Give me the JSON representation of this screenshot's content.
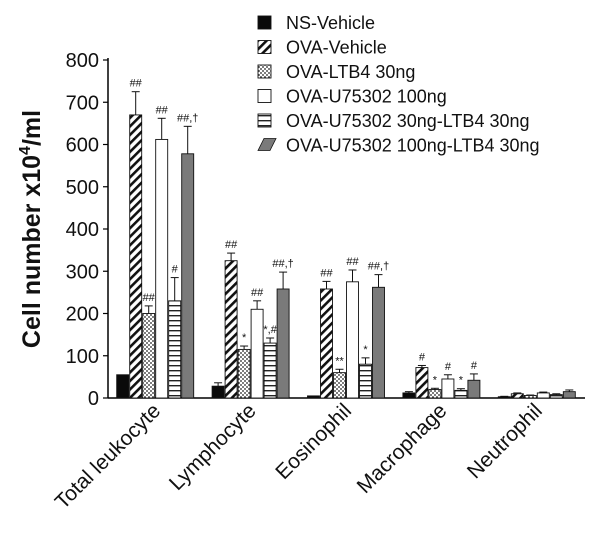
{
  "chart_data": {
    "type": "bar",
    "ylabel": "Cell number x10",
    "ylabel_sup": "4",
    "ylabel_unit": "/ml",
    "ylim": [
      0,
      800
    ],
    "yticks": [
      "0",
      "100",
      "200",
      "300",
      "400",
      "500",
      "600",
      "700",
      "800"
    ],
    "categories": [
      "Total leukocyte",
      "Lymphocyte",
      "Eosinophil",
      "Macrophage",
      "Neutrophil"
    ],
    "legend_position": "top-right",
    "grid": false,
    "series": [
      {
        "name": "NS-Vehicle",
        "pattern": "solid-black",
        "values": [
          55,
          28,
          5,
          12,
          3
        ],
        "errors": [
          0,
          8,
          0,
          3,
          1
        ],
        "annotations": [
          "",
          "",
          "",
          "",
          ""
        ]
      },
      {
        "name": "OVA-Vehicle",
        "pattern": "diagonal",
        "values": [
          670,
          325,
          258,
          72,
          10
        ],
        "errors": [
          55,
          18,
          18,
          5,
          2
        ],
        "annotations": [
          "##",
          "##",
          "##",
          "#",
          ""
        ]
      },
      {
        "name": "OVA-LTB4 30ng",
        "pattern": "dots",
        "values": [
          200,
          115,
          60,
          20,
          6
        ],
        "errors": [
          18,
          8,
          8,
          3,
          1
        ],
        "annotations": [
          "##",
          "*",
          "**",
          "*",
          ""
        ]
      },
      {
        "name": "OVA-U75302 100ng",
        "pattern": "white",
        "values": [
          612,
          210,
          275,
          45,
          12
        ],
        "errors": [
          50,
          20,
          28,
          10,
          2
        ],
        "annotations": [
          "##",
          "##",
          "##",
          "#",
          ""
        ]
      },
      {
        "name": "OVA-U75302 30ng-LTB4 30ng",
        "pattern": "horizontal",
        "values": [
          230,
          130,
          80,
          18,
          8
        ],
        "errors": [
          55,
          12,
          15,
          4,
          2
        ],
        "annotations": [
          "#",
          "*,#",
          "*",
          "*",
          ""
        ]
      },
      {
        "name": "OVA-U75302 100ng-LTB4 30ng",
        "pattern": "gray",
        "values": [
          578,
          258,
          262,
          42,
          15
        ],
        "errors": [
          65,
          40,
          30,
          15,
          4
        ],
        "annotations": [
          "##,†",
          "##,†",
          "##,†",
          "#",
          ""
        ]
      }
    ]
  }
}
